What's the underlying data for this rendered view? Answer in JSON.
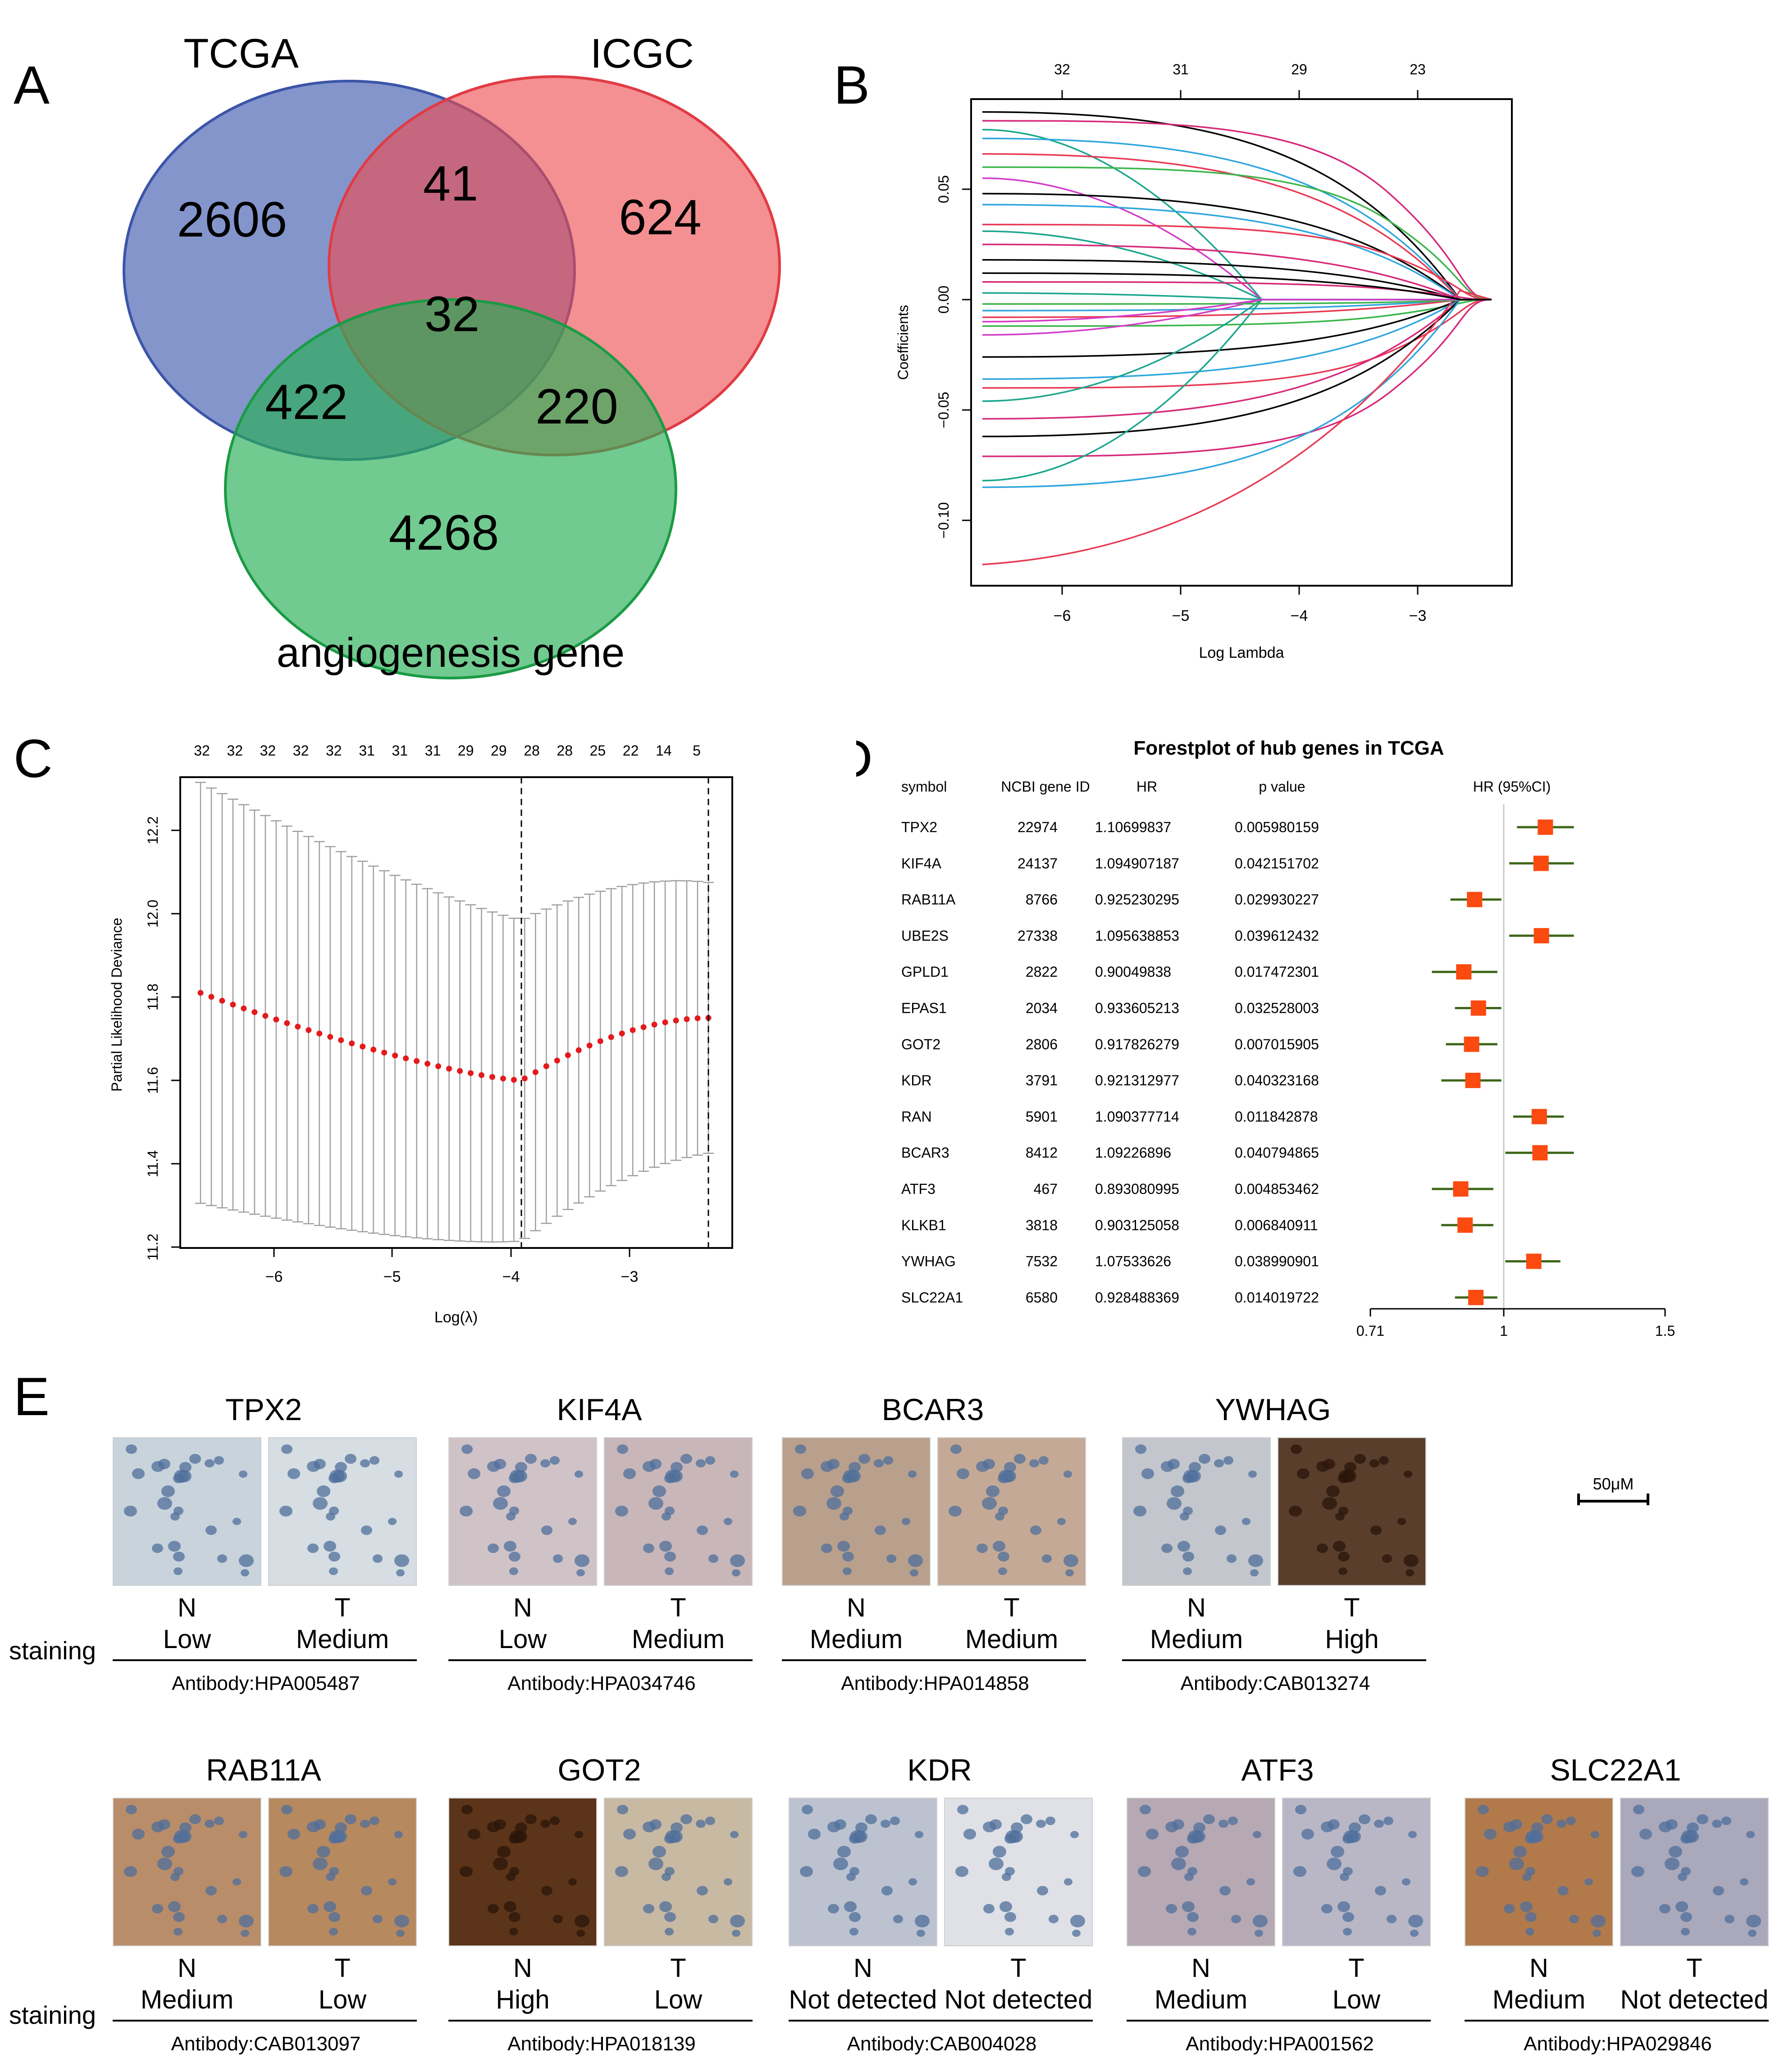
{
  "panels": {
    "A": "A",
    "B": "B",
    "C": "C",
    "D": "D",
    "E": "E"
  },
  "venn": {
    "sets": [
      {
        "label": "TCGA",
        "color": "#4a63b4"
      },
      {
        "label": "ICGC",
        "color": "#ee4a4f"
      },
      {
        "label": "angiogenesis gene",
        "color": "#27ae55"
      }
    ],
    "regions": {
      "tcga_only": "2606",
      "icgc_only": "624",
      "tcga_icgc": "41",
      "all_three": "32",
      "tcga_angio": "422",
      "icgc_angio": "220",
      "angio_only": "4268"
    }
  },
  "lasso_path": {
    "xlabel": "Log Lambda",
    "ylabel": "Coefficients",
    "x_ticks": [
      "−6",
      "−5",
      "−4",
      "−3"
    ],
    "y_ticks": [
      "0.05",
      "0.00",
      "−0.05",
      "−0.10"
    ],
    "top_ticks": [
      "32",
      "31",
      "29",
      "23"
    ]
  },
  "cv_plot": {
    "xlabel": "Log(λ)",
    "ylabel": "Partial Likelihood Deviance",
    "x_ticks": [
      "−6",
      "−5",
      "−4",
      "−3"
    ],
    "y_ticks": [
      "11.2",
      "11.4",
      "11.6",
      "11.8",
      "12.0",
      "12.2"
    ],
    "top_ticks": [
      "32",
      "32",
      "32",
      "32",
      "32",
      "31",
      "31",
      "31",
      "29",
      "29",
      "28",
      "28",
      "25",
      "22",
      "14",
      "5"
    ]
  },
  "chart_data": {
    "type": "forest",
    "title": "Forestplot of hub genes in TCGA",
    "columns": [
      "symbol",
      "NCBI gene ID",
      "HR",
      "p value",
      "HR (95%CI)"
    ],
    "x_ticks": [
      "0.71",
      "1",
      "1.5"
    ],
    "xlim": [
      0.71,
      1.5
    ],
    "ref_line": 1,
    "rows": [
      {
        "symbol": "TPX2",
        "id": "22974",
        "hr": "1.10699837",
        "p": "0.005980159",
        "hr_val": 1.107,
        "lo": 1.03,
        "hi": 1.19
      },
      {
        "symbol": "KIF4A",
        "id": "24137",
        "hr": "1.094907187",
        "p": "0.042151702",
        "hr_val": 1.095,
        "lo": 1.01,
        "hi": 1.19
      },
      {
        "symbol": "RAB11A",
        "id": "8766",
        "hr": "0.925230295",
        "p": "0.029930227",
        "hr_val": 0.925,
        "lo": 0.87,
        "hi": 0.99
      },
      {
        "symbol": "UBE2S",
        "id": "27338",
        "hr": "1.095638853",
        "p": "0.039612432",
        "hr_val": 1.096,
        "lo": 1.01,
        "hi": 1.19
      },
      {
        "symbol": "GPLD1",
        "id": "2822",
        "hr": "0.90049838",
        "p": "0.017472301",
        "hr_val": 0.9,
        "lo": 0.83,
        "hi": 0.98
      },
      {
        "symbol": "EPAS1",
        "id": "2034",
        "hr": "0.933605213",
        "p": "0.032528003",
        "hr_val": 0.934,
        "lo": 0.88,
        "hi": 0.99
      },
      {
        "symbol": "GOT2",
        "id": "2806",
        "hr": "0.917826279",
        "p": "0.007015905",
        "hr_val": 0.918,
        "lo": 0.86,
        "hi": 0.98
      },
      {
        "symbol": "KDR",
        "id": "3791",
        "hr": "0.921312977",
        "p": "0.040323168",
        "hr_val": 0.921,
        "lo": 0.85,
        "hi": 0.99
      },
      {
        "symbol": "RAN",
        "id": "5901",
        "hr": "1.090377714",
        "p": "0.011842878",
        "hr_val": 1.09,
        "lo": 1.02,
        "hi": 1.16
      },
      {
        "symbol": "BCAR3",
        "id": "8412",
        "hr": "1.09226896",
        "p": "0.040794865",
        "hr_val": 1.092,
        "lo": 1.0,
        "hi": 1.19
      },
      {
        "symbol": "ATF3",
        "id": "467",
        "hr": "0.893080995",
        "p": "0.004853462",
        "hr_val": 0.893,
        "lo": 0.83,
        "hi": 0.97
      },
      {
        "symbol": "KLKB1",
        "id": "3818",
        "hr": "0.903125058",
        "p": "0.006840911",
        "hr_val": 0.903,
        "lo": 0.85,
        "hi": 0.97
      },
      {
        "symbol": "YWHAG",
        "id": "7532",
        "hr": "1.07533626",
        "p": "0.038990901",
        "hr_val": 1.075,
        "lo": 1.0,
        "hi": 1.15
      },
      {
        "symbol": "SLC22A1",
        "id": "6580",
        "hr": "0.928488369",
        "p": "0.014019722",
        "hr_val": 0.928,
        "lo": 0.88,
        "hi": 0.98
      }
    ]
  },
  "ihc": {
    "staining_label": "staining",
    "scalebar_label": "50μM",
    "row1": [
      {
        "gene": "TPX2",
        "n": "N",
        "t": "T",
        "n_level": "Low",
        "t_level": "Medium",
        "antibody": "Antibody:HPA005487",
        "n_color": "#c9d3dc",
        "t_color": "#d6dde3"
      },
      {
        "gene": "KIF4A",
        "n": "N",
        "t": "T",
        "n_level": "Low",
        "t_level": "Medium",
        "antibody": "Antibody:HPA034746",
        "n_color": "#cfc3c8",
        "t_color": "#c8b6b8"
      },
      {
        "gene": "BCAR3",
        "n": "N",
        "t": "T",
        "n_level": "Medium",
        "t_level": "Medium",
        "antibody": "Antibody:HPA014858",
        "n_color": "#b9a08c",
        "t_color": "#c4aa96"
      },
      {
        "gene": "YWHAG",
        "n": "N",
        "t": "T",
        "n_level": "Medium",
        "t_level": "High",
        "antibody": "Antibody:CAB013274",
        "n_color": "#c3c6cc",
        "t_color": "#5a3e2c"
      }
    ],
    "row2": [
      {
        "gene": "RAB11A",
        "n": "N",
        "t": "T",
        "n_level": "Medium",
        "t_level": "Low",
        "antibody": "Antibody:CAB013097",
        "n_color": "#b98d6a",
        "t_color": "#b7895f"
      },
      {
        "gene": "GOT2",
        "n": "N",
        "t": "T",
        "n_level": "High",
        "t_level": "Low",
        "antibody": "Antibody:HPA018139",
        "n_color": "#5c3419",
        "t_color": "#c8b9a3"
      },
      {
        "gene": "KDR",
        "n": "N",
        "t": "T",
        "n_level": "Not detected",
        "t_level": "Not detected",
        "antibody": "Antibody:CAB004028",
        "n_color": "#bcc2d0",
        "t_color": "#dfe1e7"
      },
      {
        "gene": "ATF3",
        "n": "N",
        "t": "T",
        "n_level": "Medium",
        "t_level": "Low",
        "antibody": "Antibody:HPA001562",
        "n_color": "#b6a9b4",
        "t_color": "#b9b7c6"
      },
      {
        "gene": "SLC22A1",
        "n": "N",
        "t": "T",
        "n_level": "Medium",
        "t_level": "Not detected",
        "antibody": "Antibody:HPA029846",
        "n_color": "#b27a4b",
        "t_color": "#aaa8bb"
      }
    ]
  }
}
